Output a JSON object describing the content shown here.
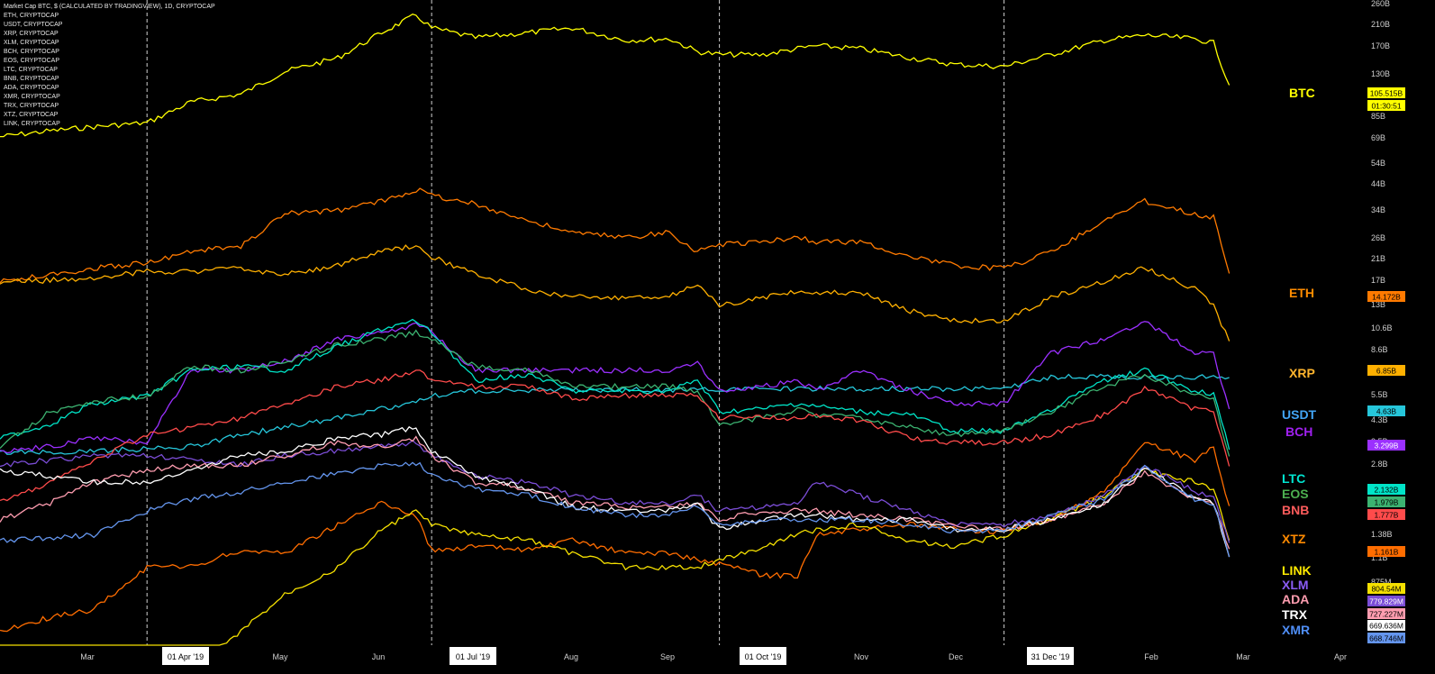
{
  "legend": [
    "Market Cap BTC, $ (CALCULATED BY TRADINGVIEW), 1D, CRYPTOCAP",
    "ETH, CRYPTOCAP",
    "USDT, CRYPTOCAP",
    "XRP, CRYPTOCAP",
    "XLM, CRYPTOCAP",
    "BCH, CRYPTOCAP",
    "EOS, CRYPTOCAP",
    "LTC, CRYPTOCAP",
    "BNB, CRYPTOCAP",
    "ADA, CRYPTOCAP",
    "XMR, CRYPTOCAP",
    "TRX, CRYPTOCAP",
    "XTZ, CRYPTOCAP",
    "LINK, CRYPTOCAP"
  ],
  "chart_data": {
    "type": "line",
    "y_scale": "log",
    "grid": false,
    "background": "#000000",
    "x_ticks": [
      "Mar",
      "01 Apr '19",
      "May",
      "Jun",
      "01 Jul '19",
      "Aug",
      "Sep",
      "01 Oct '19",
      "Nov",
      "Dec",
      "31 Dec '19",
      "Feb",
      "Mar",
      "Apr"
    ],
    "x_ticks_highlighted": [
      "01 Apr '19",
      "01 Jul '19",
      "01 Oct '19",
      "31 Dec '19"
    ],
    "vertical_markers": [
      "01 Apr '19",
      "01 Jul '19",
      "01 Oct '19",
      "31 Dec '19"
    ],
    "y_tick_labels": [
      "260B",
      "210B",
      "170B",
      "130B",
      "85B",
      "69B",
      "54B",
      "44B",
      "34B",
      "26B",
      "21B",
      "17B",
      "13B",
      "10.6B",
      "8.6B",
      "5.5B",
      "4.3B",
      "3.5B",
      "2.8B",
      "1.38B",
      "1.1B",
      "875M"
    ],
    "x": [
      "2019-02-13",
      "2019-03-01",
      "2019-03-15",
      "2019-04-01",
      "2019-04-15",
      "2019-05-01",
      "2019-05-15",
      "2019-06-01",
      "2019-06-15",
      "2019-06-26",
      "2019-07-01",
      "2019-07-15",
      "2019-08-01",
      "2019-08-15",
      "2019-09-01",
      "2019-09-15",
      "2019-09-24",
      "2019-10-01",
      "2019-10-15",
      "2019-10-26",
      "2019-11-01",
      "2019-11-15",
      "2019-12-01",
      "2019-12-15",
      "2019-12-31",
      "2020-01-15",
      "2020-02-01",
      "2020-02-14",
      "2020-03-01",
      "2020-03-07",
      "2020-03-12"
    ],
    "series": [
      {
        "name": "BTC",
        "color": "#ffff00",
        "last_value": "105.515B",
        "timer": "01:30:51",
        "label_color": "#ffff00",
        "values": [
          62,
          66,
          69,
          72,
          90,
          98,
          125,
          145,
          190,
          230,
          200,
          180,
          190,
          200,
          175,
          178,
          155,
          150,
          150,
          160,
          165,
          160,
          145,
          135,
          132,
          150,
          175,
          185,
          178,
          170,
          108
        ]
      },
      {
        "name": "ETH",
        "color": "#ff7a00",
        "last_value": "14.172B",
        "label_color": "#ff8c00",
        "values": [
          13,
          14,
          15,
          16,
          18,
          19,
          27,
          28,
          31,
          35,
          33,
          30,
          25,
          22,
          21,
          22,
          18,
          19.5,
          20,
          21,
          20,
          20,
          17,
          15.5,
          15,
          18,
          25,
          31,
          27,
          26,
          14.2
        ]
      },
      {
        "name": "XRP",
        "color": "#ffb000",
        "last_value": "6.85B",
        "label_color": "#ffb52e",
        "values": [
          13,
          13.2,
          13.5,
          14.5,
          14.5,
          15,
          14,
          15.5,
          18,
          19,
          17,
          14,
          12,
          11,
          11,
          11.2,
          12.5,
          10,
          11,
          11.8,
          11.5,
          11.5,
          9.5,
          8.5,
          8.5,
          11,
          13,
          15,
          12,
          10,
          6.85
        ]
      },
      {
        "name": "USDT",
        "color": "#26c6da",
        "last_value": "4.63B",
        "label_color": "#42a5f5",
        "values": [
          2.05,
          2.08,
          2.1,
          2.15,
          2.2,
          2.5,
          2.7,
          3,
          3.3,
          3.6,
          3.8,
          4,
          4.05,
          4.05,
          4.05,
          4.05,
          4.05,
          4.1,
          4.1,
          4.1,
          4.1,
          4.1,
          4.1,
          4.1,
          4.1,
          4.65,
          4.65,
          4.65,
          4.65,
          4.65,
          4.63
        ]
      },
      {
        "name": "BCH",
        "color": "#9b30ff",
        "last_value": "3.299B",
        "label_color": "#a020f0",
        "values": [
          2.1,
          2.2,
          2.4,
          2.3,
          5,
          5,
          5.5,
          7,
          7.5,
          8.2,
          7.5,
          5,
          5,
          5,
          5,
          5,
          5.5,
          4,
          4.2,
          4.5,
          4,
          5,
          4,
          3.5,
          3.5,
          6,
          7,
          8.5,
          6,
          6,
          3.3
        ]
      },
      {
        "name": "LTC",
        "color": "#00e5c8",
        "last_value": "2.132B",
        "label_color": "#00e5d0",
        "values": [
          2.4,
          2.8,
          3.5,
          3.8,
          5,
          5.2,
          5,
          6.5,
          7.8,
          8.5,
          7.6,
          4.5,
          4.8,
          4,
          4,
          4,
          4.5,
          3.2,
          3.3,
          3.5,
          3.4,
          3.2,
          3.1,
          2.6,
          2.6,
          3.3,
          4.5,
          5,
          4,
          3.9,
          2.13
        ]
      },
      {
        "name": "EOS",
        "color": "#3cb371",
        "last_value": "1.979B",
        "label_color": "#4caf50",
        "values": [
          2.2,
          3.2,
          3.6,
          3.8,
          5.2,
          5,
          5.5,
          6.6,
          7,
          7.5,
          7,
          5.2,
          5,
          4.2,
          4.2,
          4.2,
          4,
          2.8,
          3,
          3.3,
          3.1,
          3,
          2.7,
          2.5,
          2.6,
          3.2,
          4.2,
          4.8,
          3.8,
          3.7,
          1.98
        ]
      },
      {
        "name": "BNB",
        "color": "#ff4b4b",
        "last_value": "1.777B",
        "label_color": "#ff5c5c",
        "values": [
          1.2,
          1.5,
          1.9,
          2.5,
          2.7,
          3,
          3.5,
          4.2,
          4.5,
          5,
          4.5,
          4.2,
          4.2,
          3.7,
          3.8,
          3.8,
          3.8,
          3,
          3,
          3,
          3.1,
          2.9,
          2.4,
          2.3,
          2.3,
          2.5,
          3.1,
          4.1,
          3.3,
          3.2,
          1.78
        ]
      },
      {
        "name": "XTZ",
        "color": "#ff6d00",
        "last_value": "1.161B",
        "label_color": "#ff8a00",
        "values": [
          0.3,
          0.35,
          0.38,
          0.6,
          0.6,
          0.72,
          0.7,
          0.95,
          1.2,
          1.05,
          0.72,
          0.75,
          0.72,
          0.8,
          0.7,
          0.7,
          0.65,
          0.62,
          0.55,
          0.55,
          0.85,
          0.9,
          0.95,
          0.9,
          0.88,
          1.0,
          1.35,
          2.3,
          1.9,
          2.2,
          1.16
        ]
      },
      {
        "name": "LINK",
        "color": "#f5e000",
        "last_value": "804.54M",
        "label_color": "#ffea00",
        "values": [
          0.15,
          0.15,
          0.15,
          0.15,
          0.2,
          0.3,
          0.45,
          0.6,
          0.9,
          1.1,
          0.95,
          0.85,
          0.8,
          0.7,
          0.6,
          0.6,
          0.6,
          0.65,
          0.75,
          0.85,
          0.9,
          0.95,
          0.8,
          0.75,
          0.85,
          1.0,
          1.3,
          1.7,
          1.5,
          1.4,
          0.8
        ]
      },
      {
        "name": "XLM",
        "color": "#7b4dd6",
        "last_value": "779.829M",
        "label_color": "#8a5cf5",
        "values": [
          1.8,
          1.9,
          2.0,
          2.0,
          1.9,
          1.8,
          2.0,
          2.1,
          2.2,
          2.3,
          2.0,
          1.6,
          1.5,
          1.3,
          1.2,
          1.2,
          1.3,
          1.1,
          1.15,
          1.2,
          1.5,
          1.3,
          1.1,
          0.95,
          0.95,
          1.05,
          1.3,
          1.8,
          1.35,
          1.3,
          0.78
        ]
      },
      {
        "name": "ADA",
        "color": "#ff9db0",
        "last_value": "727.227M",
        "label_color": "#ff9db0",
        "values": [
          1.0,
          1.2,
          1.5,
          1.7,
          1.8,
          1.8,
          2.0,
          2.3,
          2.2,
          2.4,
          2.0,
          1.5,
          1.4,
          1.2,
          1.15,
          1.15,
          1.2,
          1.0,
          1.1,
          1.1,
          1.1,
          1.05,
          1.0,
          0.95,
          0.9,
          1.0,
          1.2,
          1.65,
          1.25,
          1.2,
          0.73
        ]
      },
      {
        "name": "TRX",
        "color": "#ffffff",
        "last_value": "669.636M",
        "label_color": "#ffffff",
        "values": [
          1.7,
          1.6,
          1.5,
          1.5,
          1.7,
          2.0,
          2.1,
          2.4,
          2.5,
          2.7,
          2.1,
          1.6,
          1.4,
          1.15,
          1.1,
          1.1,
          1.2,
          0.9,
          1.0,
          1.05,
          1.05,
          1.0,
          1.0,
          0.9,
          0.9,
          1.0,
          1.2,
          1.75,
          1.25,
          1.2,
          0.67
        ]
      },
      {
        "name": "XMR",
        "color": "#6495ed",
        "last_value": "668.746M",
        "label_color": "#4f8ef7",
        "values": [
          0.8,
          0.82,
          0.85,
          1.1,
          1.25,
          1.35,
          1.5,
          1.65,
          1.8,
          1.85,
          1.65,
          1.4,
          1.3,
          1.15,
          1.05,
          1.05,
          1.15,
          0.95,
          1.0,
          1.0,
          1.0,
          1.0,
          0.95,
          0.88,
          0.9,
          1.05,
          1.25,
          1.75,
          1.25,
          1.2,
          0.67
        ]
      }
    ]
  }
}
